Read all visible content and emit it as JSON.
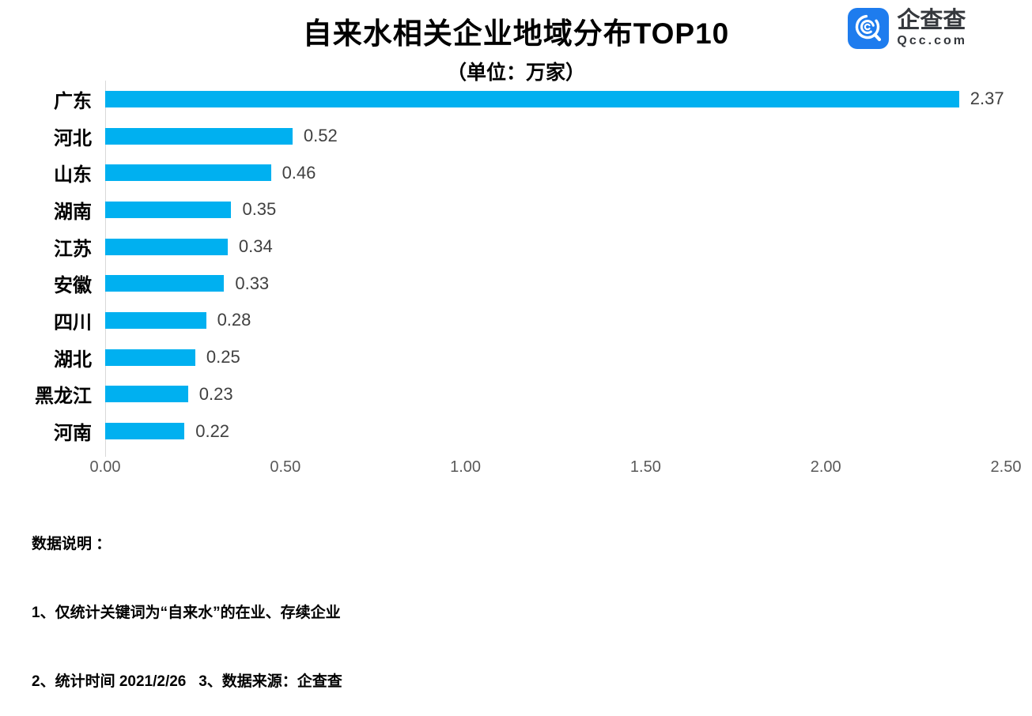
{
  "title": "自来水相关企业地域分布TOP10",
  "subtitle": "（单位：万家）",
  "logo": {
    "name": "企查查",
    "domain": "Qcc.com",
    "icon_color": "#1e7cee",
    "icon_glyph_color": "#ffffff"
  },
  "chart_data": {
    "type": "bar",
    "orientation": "horizontal",
    "title": "自来水相关企业地域分布TOP10",
    "subtitle": "（单位：万家）",
    "categories": [
      "广东",
      "河北",
      "山东",
      "湖南",
      "江苏",
      "安徽",
      "四川",
      "湖北",
      "黑龙江",
      "河南"
    ],
    "values": [
      2.37,
      0.52,
      0.46,
      0.35,
      0.34,
      0.33,
      0.28,
      0.25,
      0.23,
      0.22
    ],
    "value_labels": [
      "2.37",
      "0.52",
      "0.46",
      "0.35",
      "0.34",
      "0.33",
      "0.28",
      "0.25",
      "0.23",
      "0.22"
    ],
    "xlabel": "",
    "ylabel": "",
    "xlim": [
      0,
      2.5
    ],
    "x_ticks": [
      "0.00",
      "0.50",
      "1.00",
      "1.50",
      "2.00",
      "2.50"
    ],
    "x_tick_values": [
      0,
      0.5,
      1.0,
      1.5,
      2.0,
      2.5
    ],
    "bar_color": "#00b0f0",
    "value_label_color": "#404040",
    "tick_label_color": "#595959",
    "axis_line_color": "#d9d9d9",
    "grid": false,
    "legend": "none"
  },
  "footer": {
    "heading": "数据说明 ：",
    "line1": "1、仅统计关键词为“自来水”的在业、存续企业",
    "line2": "2、统计时间 2021/2/26   3、数据来源：企查查"
  }
}
